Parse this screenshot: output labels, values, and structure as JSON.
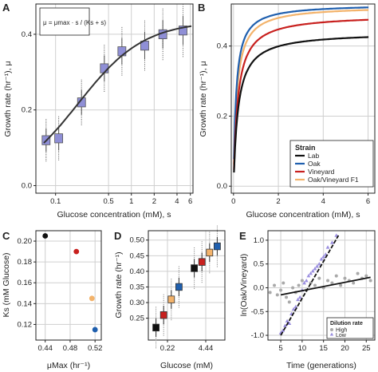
{
  "panels": {
    "A": {
      "label": "A",
      "xlabel": "Glucose concentration (mM), s",
      "ylabel": "Growth rate (hr⁻¹), μ",
      "equation": "μ = μmax · s / (Ks + s)",
      "xticks": [
        "0.1",
        "0.5",
        "1",
        "2",
        "4",
        "6"
      ],
      "yticks": [
        "0.0",
        "0.2",
        "0.4"
      ]
    },
    "B": {
      "label": "B",
      "xlabel": "Glucose concentration (mM), s",
      "ylabel": "Growth rate (hr⁻¹), μ",
      "xticks": [
        "0",
        "2",
        "4",
        "6"
      ],
      "yticks": [
        "0.0",
        "0.2",
        "0.4"
      ],
      "legend_title": "Strain",
      "legend": [
        "Lab",
        "Oak",
        "Vineyard",
        "Oak/Vineyard F1"
      ]
    },
    "C": {
      "label": "C",
      "xlabel": "μMax (hr⁻¹)",
      "ylabel": "Ks (mM Glucose)",
      "xticks": [
        "0.44",
        "0.48",
        "0.52"
      ],
      "yticks": [
        "0.12",
        "0.14",
        "0.16",
        "0.18",
        "0.20"
      ]
    },
    "D": {
      "label": "D",
      "xlabel": "Glucose (mM)",
      "ylabel": "Growth rate (hr⁻¹)",
      "xticks": [
        "0.22",
        "4.44"
      ],
      "yticks": [
        "0.25",
        "0.30",
        "0.35",
        "0.40",
        "0.45",
        "0.50"
      ]
    },
    "E": {
      "label": "E",
      "xlabel": "Time (generations)",
      "ylabel": "ln(Oak/Vineyard)",
      "xticks": [
        "5",
        "10",
        "15",
        "20",
        "25"
      ],
      "yticks": [
        "-1.0",
        "-0.5",
        "0.0",
        "0.5",
        "1.0"
      ],
      "legend_title": "Dilution rate",
      "legend": [
        "High",
        "Low"
      ]
    }
  },
  "colors": {
    "lab": "#111111",
    "oak": "#1f5fae",
    "vineyard": "#c8201e",
    "f1": "#f3b36b",
    "box": "#8f8fd6",
    "high": "#a9a9a9",
    "low": "#9b8fe0"
  },
  "chart_data": [
    {
      "panel": "A",
      "type": "box",
      "x": [
        0.075,
        0.11,
        0.22,
        0.44,
        0.75,
        1.5,
        2.6,
        4.8
      ],
      "values": [
        0.12,
        0.125,
        0.22,
        0.31,
        0.355,
        0.37,
        0.4,
        0.41
      ],
      "fit": {
        "mu_max": 0.435,
        "ks": 0.2
      },
      "xscale": "log",
      "ylim": [
        -0.02,
        0.48
      ]
    },
    {
      "panel": "B",
      "type": "line",
      "xlim": [
        0,
        6.3
      ],
      "ylim": [
        -0.02,
        0.52
      ],
      "series": [
        {
          "name": "Lab",
          "mu_max": 0.44,
          "ks": 0.205
        },
        {
          "name": "Oak",
          "mu_max": 0.52,
          "ks": 0.115
        },
        {
          "name": "Vineyard",
          "mu_max": 0.49,
          "ks": 0.19
        },
        {
          "name": "Oak/Vineyard F1",
          "mu_max": 0.515,
          "ks": 0.145
        }
      ]
    },
    {
      "panel": "C",
      "type": "scatter",
      "x": [
        0.44,
        0.49,
        0.515,
        0.52
      ],
      "y": [
        0.205,
        0.19,
        0.145,
        0.115
      ],
      "xlim": [
        0.425,
        0.53
      ],
      "ylim": [
        0.105,
        0.21
      ]
    },
    {
      "panel": "D",
      "type": "box",
      "positions": [
        1,
        2,
        3,
        4,
        6,
        7,
        8,
        9
      ],
      "values": [
        0.22,
        0.26,
        0.31,
        0.35,
        0.41,
        0.43,
        0.46,
        0.48
      ],
      "ylim": [
        0.18,
        0.53
      ]
    },
    {
      "panel": "E",
      "type": "scatter",
      "xlim": [
        2,
        27
      ],
      "ylim": [
        -1.1,
        1.2
      ],
      "series": [
        {
          "name": "High",
          "x": [
            2.5,
            3.5,
            4.2,
            5,
            5.6,
            6.3,
            7,
            7.8,
            8.5,
            9.2,
            10,
            11,
            12,
            13,
            14,
            15,
            16,
            17,
            18,
            19,
            20,
            21,
            22,
            23,
            24,
            25,
            26
          ],
          "y": [
            -0.1,
            0.05,
            -0.15,
            -0.05,
            0.1,
            -0.2,
            -0.3,
            0.0,
            -0.1,
            0.05,
            0.15,
            -0.05,
            0.1,
            0.05,
            0.2,
            0.0,
            0.15,
            0.1,
            0.25,
            0.05,
            0.2,
            0.15,
            0.1,
            0.3,
            0.2,
            0.25,
            0.15
          ]
        },
        {
          "name": "Low",
          "x": [
            5,
            5.5,
            6,
            6.5,
            7,
            7.5,
            8,
            8.5,
            9,
            9.5,
            10,
            10.5,
            11,
            11.5,
            12,
            12.5,
            13,
            13.5,
            14,
            14.5,
            15,
            15.5,
            16,
            17,
            18
          ],
          "y": [
            -0.95,
            -0.9,
            -0.8,
            -0.7,
            -0.75,
            -0.55,
            -0.45,
            -0.4,
            -0.25,
            -0.2,
            -0.05,
            0.1,
            0.15,
            0.25,
            0.3,
            0.35,
            0.4,
            0.45,
            0.5,
            0.6,
            0.65,
            0.7,
            0.85,
            0.95,
            1.1
          ]
        }
      ],
      "fits": [
        {
          "name": "High",
          "x": [
            5,
            26
          ],
          "y": [
            -0.15,
            0.22
          ]
        },
        {
          "name": "Low",
          "x": [
            5,
            18.5
          ],
          "y": [
            -1.0,
            1.1
          ]
        }
      ]
    }
  ]
}
